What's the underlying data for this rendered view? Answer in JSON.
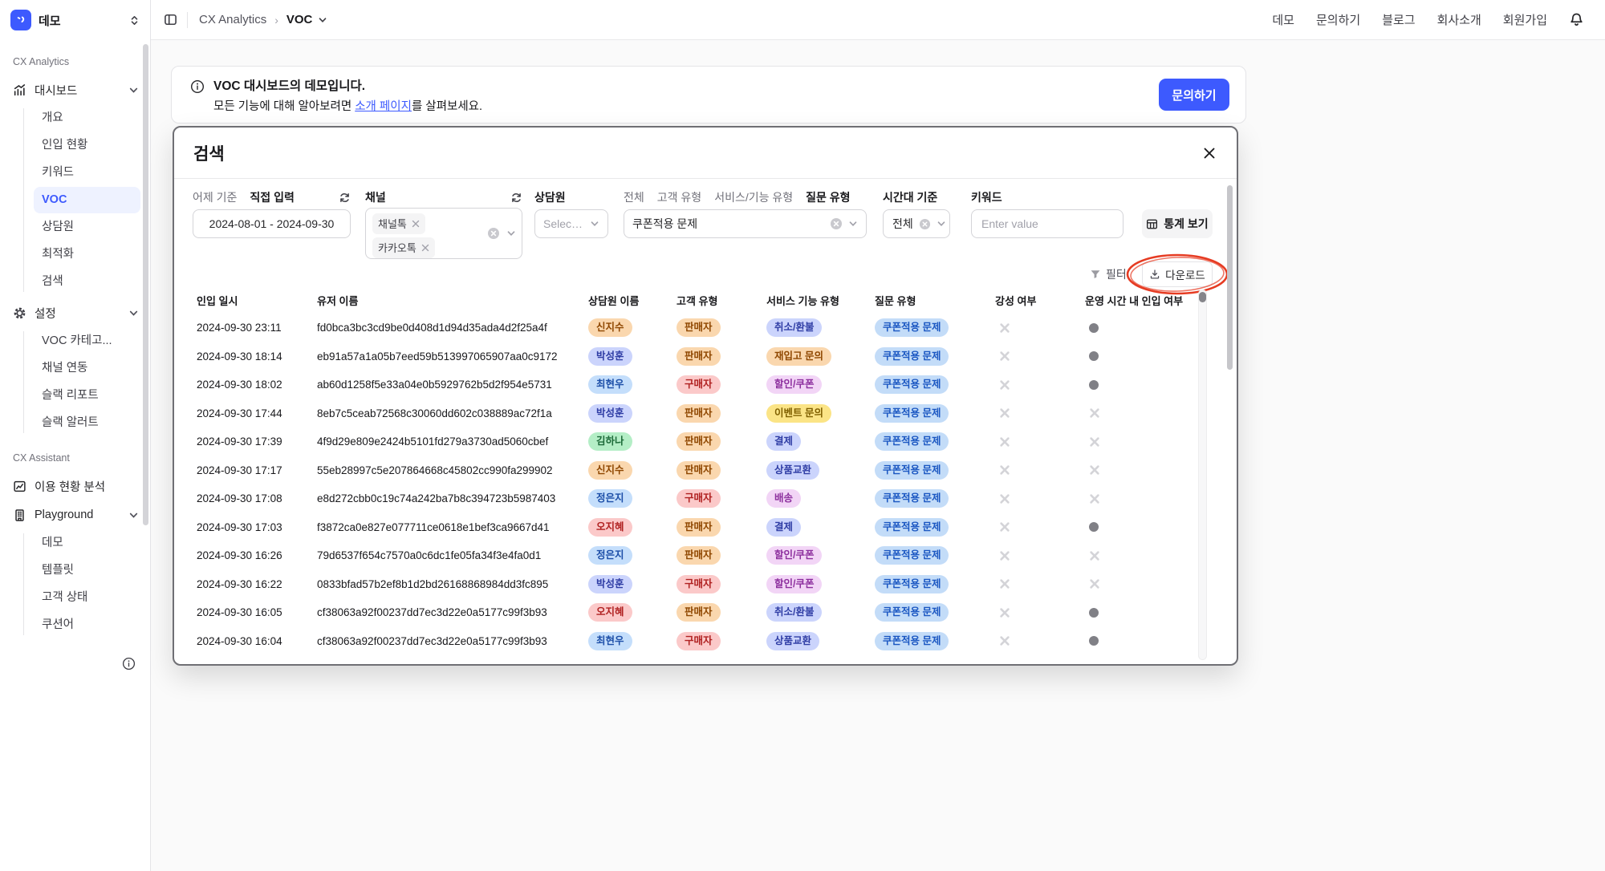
{
  "colors": {
    "accent": "#3d5afe",
    "annotation_red": "#e63b22",
    "pill": {
      "peach": {
        "bg": "#fad7ae",
        "fg": "#8f4700"
      },
      "periwinkle": {
        "bg": "#cbd4fc",
        "fg": "#2f3da5"
      },
      "blue": {
        "bg": "#c4defb",
        "fg": "#1d4fa8"
      },
      "green": {
        "bg": "#b4eec6",
        "fg": "#1d6b39"
      },
      "red": {
        "bg": "#fbc9c9",
        "fg": "#b02121"
      },
      "lilac": {
        "bg": "#f2d5f6",
        "fg": "#8d2f9e"
      },
      "yellow": {
        "bg": "#fbe486",
        "fg": "#806000"
      },
      "skyblue": {
        "bg": "#c3dcf8",
        "fg": "#1b57c2"
      }
    }
  },
  "sidebar": {
    "workspace": "데모",
    "sections": [
      {
        "label": "CX Analytics",
        "items": [
          {
            "key": "dashboard",
            "label": "대시보드",
            "icon": "dashboard-icon",
            "expanded": true,
            "children": [
              {
                "key": "overview",
                "label": "개요"
              },
              {
                "key": "inflow",
                "label": "인입 현황"
              },
              {
                "key": "keywords",
                "label": "키워드"
              },
              {
                "key": "voc",
                "label": "VOC",
                "active": true
              },
              {
                "key": "agents",
                "label": "상담원"
              },
              {
                "key": "optimization",
                "label": "최적화"
              },
              {
                "key": "search",
                "label": "검색"
              }
            ]
          },
          {
            "key": "settings",
            "label": "설정",
            "icon": "gear-icon",
            "expanded": true,
            "children": [
              {
                "key": "voc-categories",
                "label": "VOC 카테고..."
              },
              {
                "key": "channel-integration",
                "label": "채널 연동"
              },
              {
                "key": "slack-report",
                "label": "슬랙 리포트"
              },
              {
                "key": "slack-alert",
                "label": "슬랙 알러트"
              }
            ]
          }
        ]
      },
      {
        "label": "CX Assistant",
        "items": [
          {
            "key": "usage-analysis",
            "label": "이용 현황 분석",
            "icon": "usage-chart-icon"
          },
          {
            "key": "playground",
            "label": "Playground",
            "icon": "building-icon",
            "expanded": true,
            "children": [
              {
                "key": "demo",
                "label": "데모"
              },
              {
                "key": "templates",
                "label": "템플릿"
              },
              {
                "key": "customer-status",
                "label": "고객 상태"
              },
              {
                "key": "cushion",
                "label": "쿠션어"
              }
            ]
          }
        ]
      }
    ]
  },
  "topbar": {
    "breadcrumb": {
      "root": "CX Analytics",
      "current": "VOC"
    },
    "links": [
      "데모",
      "문의하기",
      "블로그",
      "회사소개",
      "회원가입"
    ]
  },
  "banner": {
    "title": "VOC 대시보드의 데모입니다.",
    "body_prefix": "모든 기능에 대해 알아보려면 ",
    "link_text": "소개 페이지",
    "body_suffix": "를 살펴보세요.",
    "cta": "문의하기"
  },
  "modal": {
    "title": "검색",
    "filters": {
      "date": {
        "tab_secondary": "어제 기준",
        "tab_primary": "직접 입력",
        "value": "2024-08-01  -  2024-09-30"
      },
      "channel": {
        "label": "채널",
        "tags": [
          "채널톡",
          "카카오톡"
        ]
      },
      "agent": {
        "label": "상담원",
        "placeholder": "Selec…"
      },
      "category": {
        "tabs": [
          "전체",
          "고객 유형",
          "서비스/기능 유형",
          "질문 유형"
        ],
        "active_tab": "질문 유형",
        "value": "쿠폰적용 문제"
      },
      "time": {
        "label": "시간대 기준",
        "value": "전체"
      },
      "keyword": {
        "label": "키워드",
        "placeholder": "Enter value"
      },
      "stats_button": "통계 보기"
    },
    "actions": {
      "filter": "필터",
      "download": "다운로드"
    },
    "table": {
      "headers": [
        "인입 일시",
        "유저 이름",
        "상담원 이름",
        "고객 유형",
        "서비스 기능 유형",
        "질문 유형",
        "강성 여부",
        "운영 시간 내 인입 여부"
      ],
      "rows": [
        {
          "datetime": "2024-09-30 23:11",
          "user": "fd0bca3bc3cd9be0d408d1d94d35ada4d2f25a4f",
          "agent": {
            "text": "신지수",
            "color": "peach"
          },
          "customer": {
            "text": "판매자",
            "color": "peach"
          },
          "service": {
            "text": "취소/환불",
            "color": "periwinkle"
          },
          "question": {
            "text": "쿠폰적용 문제",
            "color": "skyblue"
          },
          "aggressive": false,
          "in_hours": true
        },
        {
          "datetime": "2024-09-30 18:14",
          "user": "eb91a57a1a05b7eed59b513997065907aa0c9172",
          "agent": {
            "text": "박성훈",
            "color": "periwinkle"
          },
          "customer": {
            "text": "판매자",
            "color": "peach"
          },
          "service": {
            "text": "재입고 문의",
            "color": "peach"
          },
          "question": {
            "text": "쿠폰적용 문제",
            "color": "skyblue"
          },
          "aggressive": false,
          "in_hours": true
        },
        {
          "datetime": "2024-09-30 18:02",
          "user": "ab60d1258f5e33a04e0b5929762b5d2f954e5731",
          "agent": {
            "text": "최현우",
            "color": "blue"
          },
          "customer": {
            "text": "구매자",
            "color": "red"
          },
          "service": {
            "text": "할인/쿠폰",
            "color": "lilac"
          },
          "question": {
            "text": "쿠폰적용 문제",
            "color": "skyblue"
          },
          "aggressive": false,
          "in_hours": true
        },
        {
          "datetime": "2024-09-30 17:44",
          "user": "8eb7c5ceab72568c30060dd602c038889ac72f1a",
          "agent": {
            "text": "박성훈",
            "color": "periwinkle"
          },
          "customer": {
            "text": "판매자",
            "color": "peach"
          },
          "service": {
            "text": "이벤트 문의",
            "color": "yellow"
          },
          "question": {
            "text": "쿠폰적용 문제",
            "color": "skyblue"
          },
          "aggressive": false,
          "in_hours": false
        },
        {
          "datetime": "2024-09-30 17:39",
          "user": "4f9d29e809e2424b5101fd279a3730ad5060cbef",
          "agent": {
            "text": "김하나",
            "color": "green"
          },
          "customer": {
            "text": "판매자",
            "color": "peach"
          },
          "service": {
            "text": "결제",
            "color": "periwinkle"
          },
          "question": {
            "text": "쿠폰적용 문제",
            "color": "skyblue"
          },
          "aggressive": false,
          "in_hours": false
        },
        {
          "datetime": "2024-09-30 17:17",
          "user": "55eb28997c5e207864668c45802cc990fa299902",
          "agent": {
            "text": "신지수",
            "color": "peach"
          },
          "customer": {
            "text": "판매자",
            "color": "peach"
          },
          "service": {
            "text": "상품교환",
            "color": "periwinkle"
          },
          "question": {
            "text": "쿠폰적용 문제",
            "color": "skyblue"
          },
          "aggressive": false,
          "in_hours": false
        },
        {
          "datetime": "2024-09-30 17:08",
          "user": "e8d272cbb0c19c74a242ba7b8c394723b5987403",
          "agent": {
            "text": "정은지",
            "color": "blue"
          },
          "customer": {
            "text": "구매자",
            "color": "red"
          },
          "service": {
            "text": "배송",
            "color": "lilac"
          },
          "question": {
            "text": "쿠폰적용 문제",
            "color": "skyblue"
          },
          "aggressive": false,
          "in_hours": false
        },
        {
          "datetime": "2024-09-30 17:03",
          "user": "f3872ca0e827e077711ce0618e1bef3ca9667d41",
          "agent": {
            "text": "오지혜",
            "color": "red"
          },
          "customer": {
            "text": "판매자",
            "color": "peach"
          },
          "service": {
            "text": "결제",
            "color": "periwinkle"
          },
          "question": {
            "text": "쿠폰적용 문제",
            "color": "skyblue"
          },
          "aggressive": false,
          "in_hours": true
        },
        {
          "datetime": "2024-09-30 16:26",
          "user": "79d6537f654c7570a0c6dc1fe05fa34f3e4fa0d1",
          "agent": {
            "text": "정은지",
            "color": "blue"
          },
          "customer": {
            "text": "판매자",
            "color": "peach"
          },
          "service": {
            "text": "할인/쿠폰",
            "color": "lilac"
          },
          "question": {
            "text": "쿠폰적용 문제",
            "color": "skyblue"
          },
          "aggressive": false,
          "in_hours": false
        },
        {
          "datetime": "2024-09-30 16:22",
          "user": "0833bfad57b2ef8b1d2bd26168868984dd3fc895",
          "agent": {
            "text": "박성훈",
            "color": "periwinkle"
          },
          "customer": {
            "text": "구매자",
            "color": "red"
          },
          "service": {
            "text": "할인/쿠폰",
            "color": "lilac"
          },
          "question": {
            "text": "쿠폰적용 문제",
            "color": "skyblue"
          },
          "aggressive": false,
          "in_hours": false
        },
        {
          "datetime": "2024-09-30 16:05",
          "user": "cf38063a92f00237dd7ec3d22e0a5177c99f3b93",
          "agent": {
            "text": "오지혜",
            "color": "red"
          },
          "customer": {
            "text": "판매자",
            "color": "peach"
          },
          "service": {
            "text": "취소/환불",
            "color": "periwinkle"
          },
          "question": {
            "text": "쿠폰적용 문제",
            "color": "skyblue"
          },
          "aggressive": false,
          "in_hours": true
        },
        {
          "datetime": "2024-09-30 16:04",
          "user": "cf38063a92f00237dd7ec3d22e0a5177c99f3b93",
          "agent": {
            "text": "최현우",
            "color": "blue"
          },
          "customer": {
            "text": "구매자",
            "color": "red"
          },
          "service": {
            "text": "상품교환",
            "color": "periwinkle"
          },
          "question": {
            "text": "쿠폰적용 문제",
            "color": "skyblue"
          },
          "aggressive": false,
          "in_hours": true
        }
      ]
    }
  }
}
